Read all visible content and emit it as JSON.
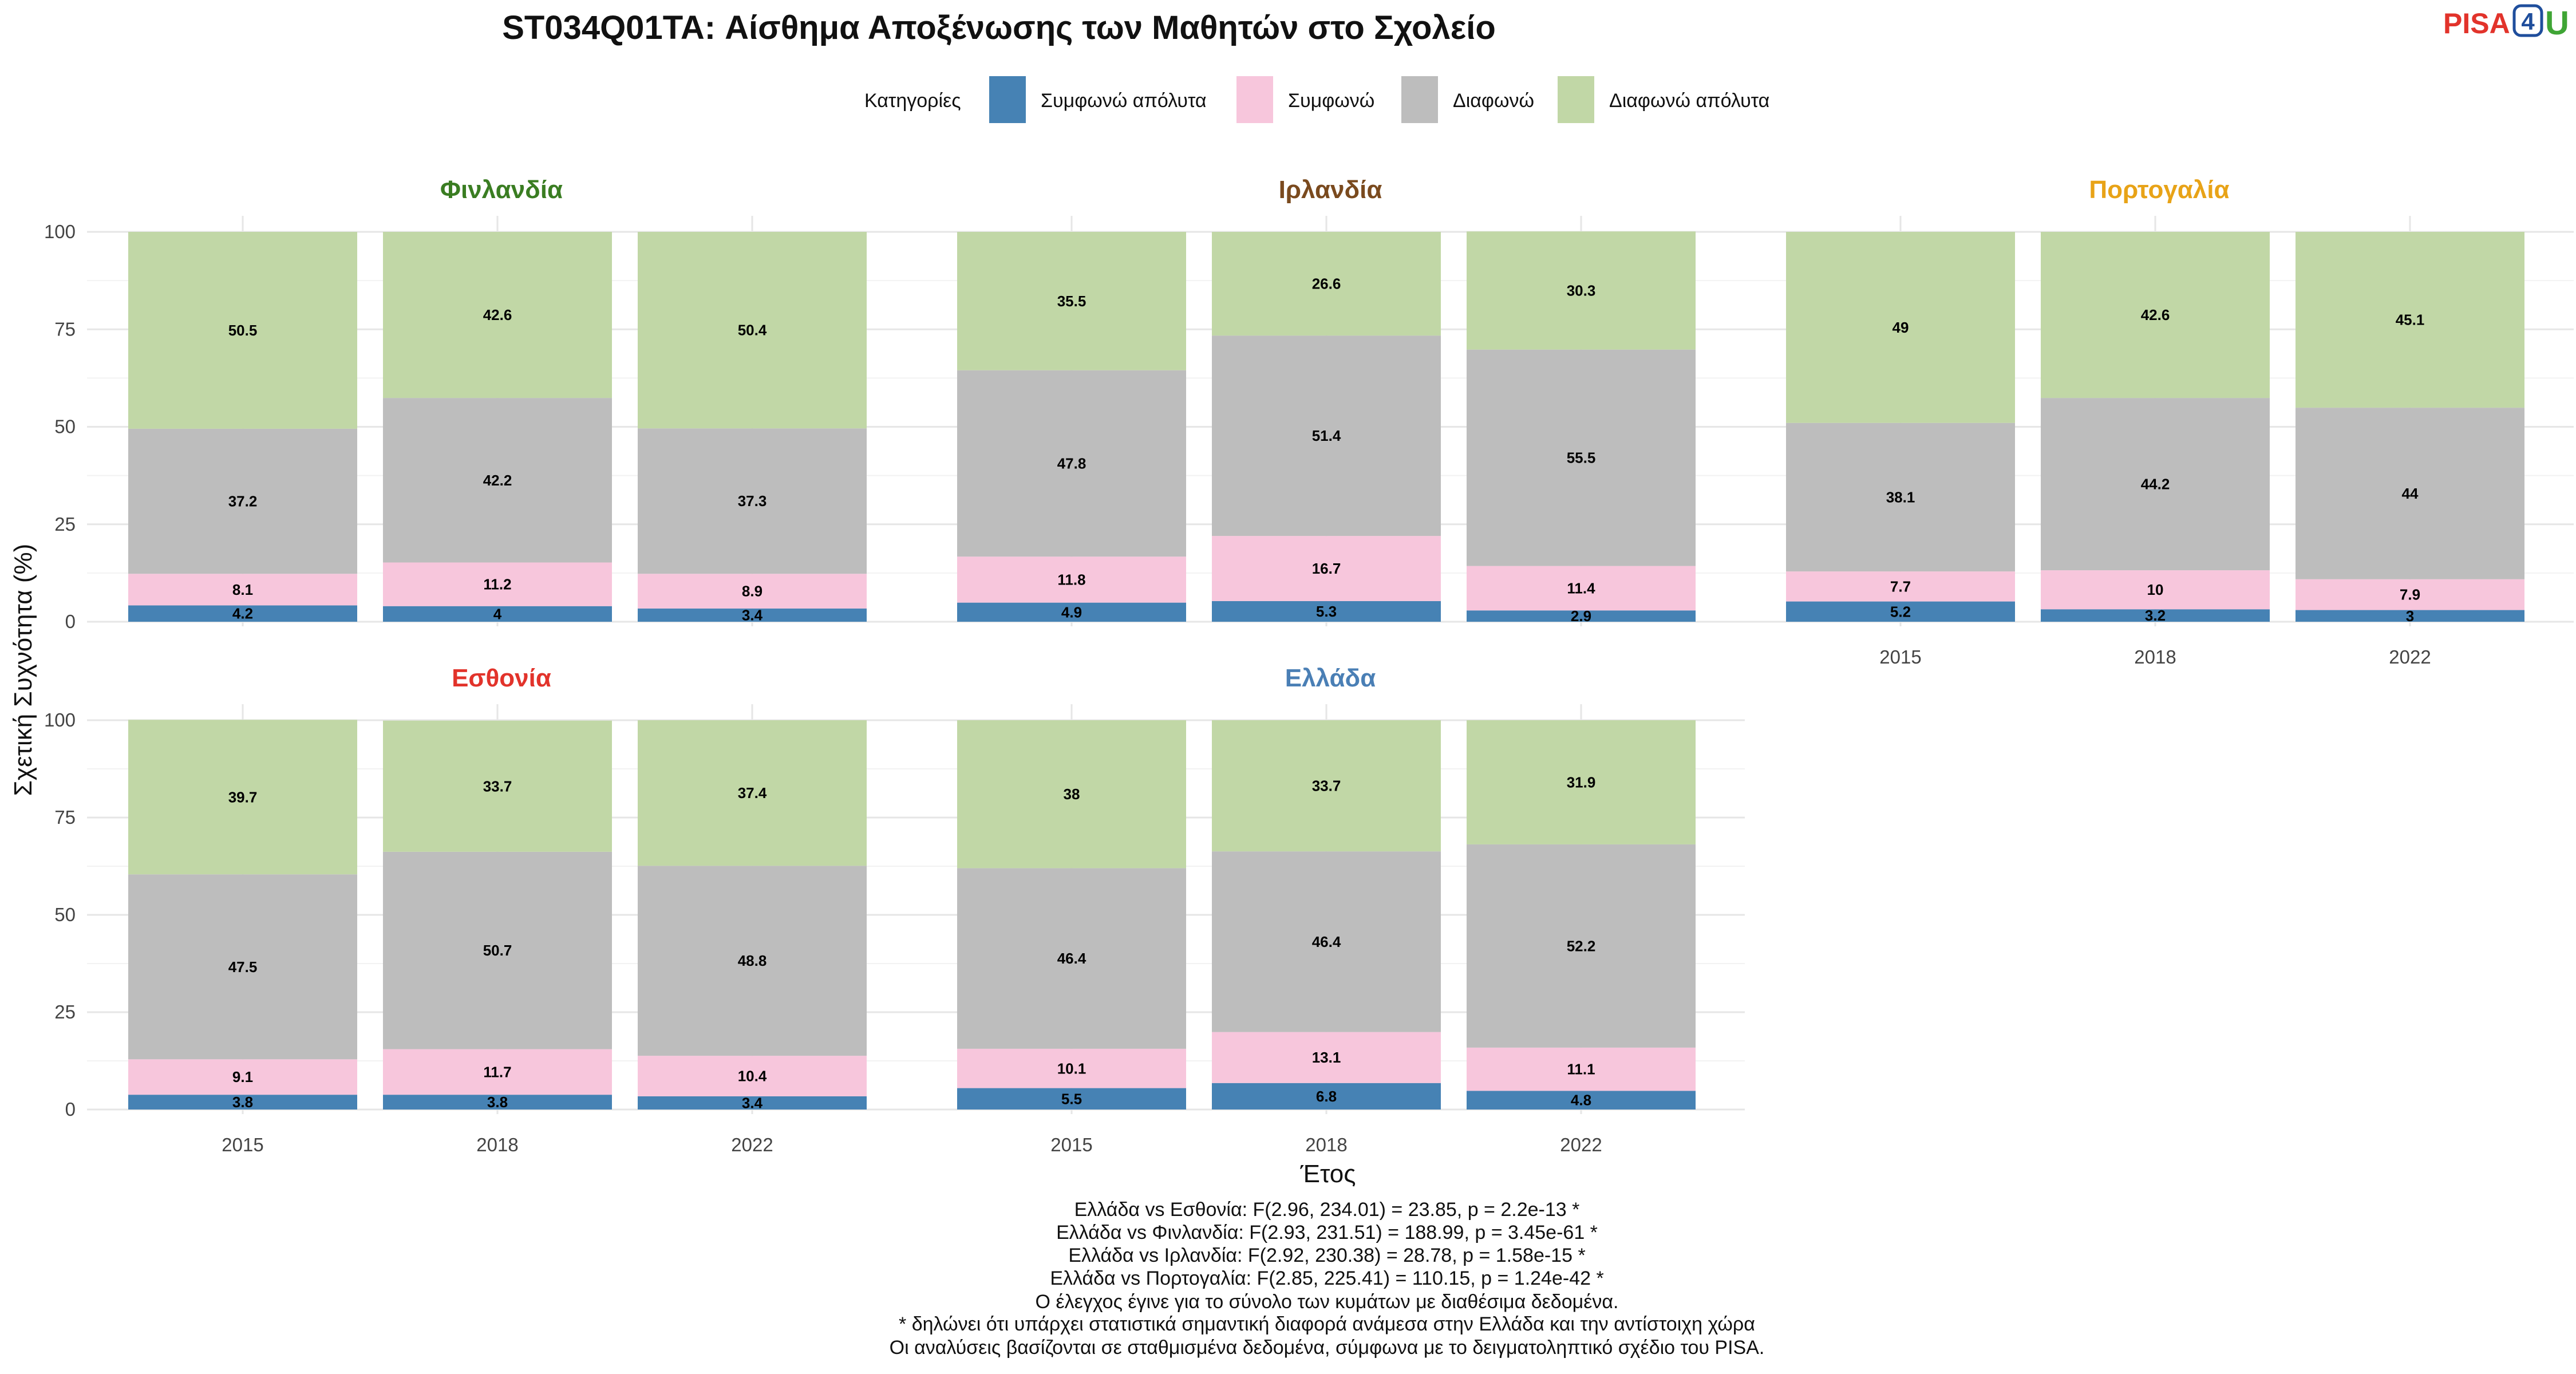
{
  "chart_data": {
    "type": "bar",
    "stacked": true,
    "title": "ST034Q01TA: Αίσθημα Αποξένωσης των Μαθητών στο Σχολείο",
    "xlabel": "Έτος",
    "ylabel": "Σχετική Συχνότητα (%)",
    "ylim": [
      0,
      100
    ],
    "yticks": [
      "0",
      "25",
      "50",
      "75",
      "100"
    ],
    "grid": true,
    "legend": {
      "title": "Κατηγορίες",
      "position": "top",
      "items": [
        {
          "label": "Συμφωνώ απόλυτα",
          "color": "#4682b4"
        },
        {
          "label": "Συμφωνώ",
          "color": "#f7c6dc"
        },
        {
          "label": "Διαφωνώ",
          "color": "#bdbdbd"
        },
        {
          "label": "Διαφωνώ απόλυτα",
          "color": "#c1d7a6"
        }
      ]
    },
    "categories": [
      "2015",
      "2018",
      "2022"
    ],
    "facets": [
      {
        "name": "Φινλανδία",
        "color": "#3a7d22",
        "values": [
          [
            "4.2",
            "8.1",
            "37.2",
            "50.5"
          ],
          [
            "4",
            "11.2",
            "42.2",
            "42.6"
          ],
          [
            "3.4",
            "8.9",
            "37.3",
            "50.4"
          ]
        ]
      },
      {
        "name": "Ιρλανδία",
        "color": "#7a4a1e",
        "values": [
          [
            "4.9",
            "11.8",
            "47.8",
            "35.5"
          ],
          [
            "5.3",
            "16.7",
            "51.4",
            "26.6"
          ],
          [
            "2.9",
            "11.4",
            "55.5",
            "30.3"
          ]
        ]
      },
      {
        "name": "Πορτογαλία",
        "color": "#e8a317",
        "values": [
          [
            "5.2",
            "7.7",
            "38.1",
            "49"
          ],
          [
            "3.2",
            "10",
            "44.2",
            "42.6"
          ],
          [
            "3",
            "7.9",
            "44",
            "45.1"
          ]
        ]
      },
      {
        "name": "Εσθονία",
        "color": "#e2332b",
        "values": [
          [
            "3.8",
            "9.1",
            "47.5",
            "39.7"
          ],
          [
            "3.8",
            "11.7",
            "50.7",
            "33.7"
          ],
          [
            "3.4",
            "10.4",
            "48.8",
            "37.4"
          ]
        ]
      },
      {
        "name": "Ελλάδα",
        "color": "#4a7fb5",
        "values": [
          [
            "5.5",
            "10.1",
            "46.4",
            "38"
          ],
          [
            "6.8",
            "13.1",
            "46.4",
            "33.7"
          ],
          [
            "4.8",
            "11.1",
            "52.2",
            "31.9"
          ]
        ]
      }
    ],
    "annotations": [
      "Ελλάδα vs Εσθονία: F(2.96, 234.01) = 23.85, p = 2.2e-13 *",
      "Ελλάδα vs Φινλανδία: F(2.93, 231.51) = 188.99, p = 3.45e-61 *",
      "Ελλάδα vs Ιρλανδία: F(2.92, 230.38) = 28.78, p = 1.58e-15 *",
      "Ελλάδα vs Πορτογαλία: F(2.85, 225.41) = 110.15, p = 1.24e-42 *",
      "Ο έλεγχος έγινε για το σύνολο των κυμάτων με διαθέσιμα δεδομένα.",
      "* δηλώνει ότι υπάρχει στατιστικά σημαντική διαφορά ανάμεσα στην Ελλάδα και την αντίστοιχη χώρα",
      "Οι αναλύσεις βασίζονται σε σταθμισμένα δεδομένα, σύμφωνα με το δειγματοληπτικό σχέδιο του PISA."
    ]
  },
  "logo": {
    "part1": "PISA",
    "part2": "4",
    "part3": "U"
  }
}
